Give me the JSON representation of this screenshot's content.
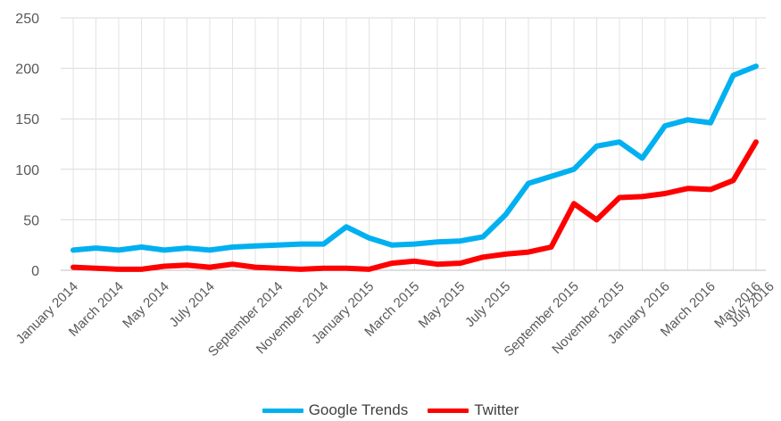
{
  "chart_data": {
    "type": "line",
    "ylim": [
      0,
      250
    ],
    "yticks": [
      0,
      50,
      100,
      150,
      200,
      250
    ],
    "xlabels": [
      "January 2014",
      "March 2014",
      "May 2014",
      "July 2014",
      "September 2014",
      "November 2014",
      "January 2015",
      "March 2015",
      "May 2015",
      "July 2015",
      "September 2015",
      "November 2015",
      "January 2016",
      "March 2016",
      "May 2016",
      "July 2016"
    ],
    "grid": true,
    "legend_position": "bottom",
    "x": [
      "2014-01",
      "2014-02",
      "2014-03",
      "2014-04",
      "2014-05",
      "2014-06",
      "2014-07",
      "2014-08",
      "2014-09",
      "2014-10",
      "2014-11",
      "2014-12",
      "2015-01",
      "2015-02",
      "2015-03",
      "2015-04",
      "2015-05",
      "2015-06",
      "2015-07",
      "2015-08",
      "2015-09",
      "2015-10",
      "2015-11",
      "2015-12",
      "2016-01",
      "2016-02",
      "2016-03",
      "2016-04",
      "2016-05",
      "2016-06",
      "2016-07"
    ],
    "series": [
      {
        "name": "Google Trends",
        "color": "#00B0F0",
        "values": [
          20,
          22,
          20,
          23,
          20,
          22,
          20,
          23,
          24,
          25,
          26,
          26,
          43,
          32,
          25,
          26,
          28,
          29,
          33,
          55,
          86,
          93,
          100,
          123,
          127,
          111,
          143,
          149,
          146,
          193,
          202
        ]
      },
      {
        "name": "Twitter",
        "color": "#FF0000",
        "values": [
          3,
          2,
          1,
          1,
          4,
          5,
          3,
          6,
          3,
          2,
          1,
          2,
          2,
          1,
          7,
          9,
          6,
          7,
          13,
          16,
          18,
          23,
          66,
          50,
          72,
          73,
          76,
          81,
          80,
          89,
          127
        ]
      }
    ]
  }
}
